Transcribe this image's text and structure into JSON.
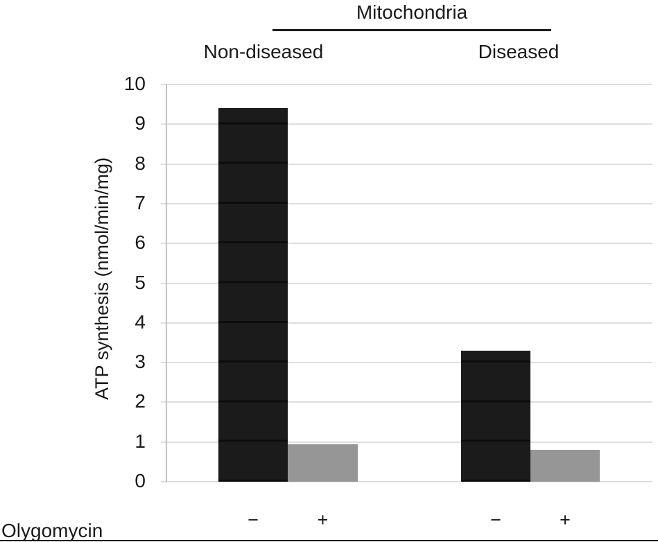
{
  "header": {
    "group_title": "Mitochondria"
  },
  "chart_data": {
    "type": "bar",
    "title": "Mitochondria",
    "subtitle": "",
    "xlabel": "",
    "ylabel": "ATP synthesis (nmol/min/mg)",
    "ylim": [
      0,
      10
    ],
    "yticks": [
      0,
      1,
      2,
      3,
      4,
      5,
      6,
      7,
      8,
      9,
      10
    ],
    "grid": true,
    "legend_position": "none",
    "row_label": "Olygomycin",
    "groups": [
      {
        "label": "Non-diseased",
        "bars": [
          {
            "olygomycin": "−",
            "value": 9.4
          },
          {
            "olygomycin": "+",
            "value": 0.95
          }
        ]
      },
      {
        "label": "Diseased",
        "bars": [
          {
            "olygomycin": "−",
            "value": 3.3
          },
          {
            "olygomycin": "+",
            "value": 0.8
          }
        ]
      }
    ],
    "bar_colors": {
      "−": "#1b1b1b",
      "+": "#969696"
    }
  },
  "colors": {
    "background": "#ffffff",
    "text": "#1a1a1a",
    "gridline": "#dedede",
    "axis_line": "#c4c4c4",
    "bar_minus": "#1b1b1b",
    "bar_plus": "#969696"
  }
}
